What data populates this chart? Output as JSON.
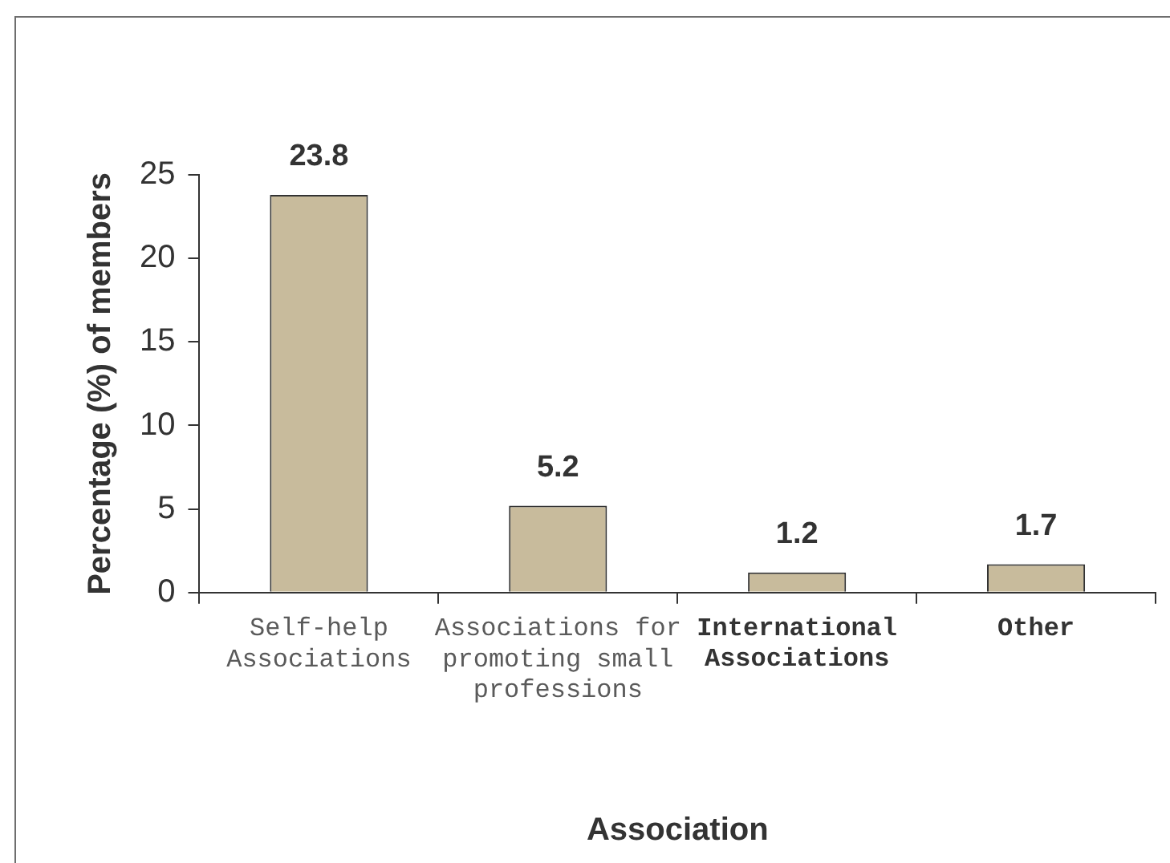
{
  "chart_data": {
    "type": "bar",
    "xlabel": "Association",
    "ylabel": "Percentage (%) of members",
    "categories": [
      "Self-help Associations",
      "Associations for promoting small professions",
      "International Associations",
      "Other"
    ],
    "values": [
      23.8,
      5.2,
      1.2,
      1.7
    ],
    "color": "#c8bb9c",
    "ylim": [
      0,
      25
    ],
    "yticks": [
      0,
      5,
      10,
      15,
      20,
      25
    ],
    "data_labels": true
  }
}
